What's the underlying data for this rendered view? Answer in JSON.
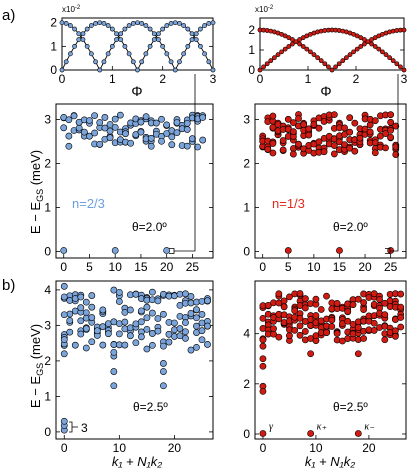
{
  "panel_labels": [
    "a)",
    "b)"
  ],
  "y_label_common": "E − E",
  "y_label_common_sub": "GS",
  "y_label_unit": "(meV)",
  "colors": {
    "blue_fill": "#7BA4DA",
    "red_fill": "#D11B12",
    "blue_text": "#6E9FDD",
    "red_text": "#E02A1E",
    "axis": "#000000"
  },
  "chart_data": [
    {
      "id": "a-left-inset",
      "type": "line",
      "xlabel": "Φ",
      "x_ticks": [
        "0",
        "1",
        "2",
        "3"
      ],
      "y_ticks": [
        "0",
        "1",
        "2"
      ],
      "y_multiplier": "x10",
      "y_multiplier_exp": "-2",
      "xlim": [
        0,
        3
      ],
      "ylim": [
        0,
        2.2
      ],
      "series_shape": "abs_sin_period_1.5",
      "amplitude": 2.0
    },
    {
      "id": "a-right-inset",
      "type": "line",
      "xlabel": "Φ",
      "x_ticks": [
        "0",
        "1",
        "2",
        "3"
      ],
      "y_ticks": [
        "0",
        "1",
        "2"
      ],
      "y_multiplier": "x10",
      "y_multiplier_exp": "-2",
      "xlim": [
        0,
        3
      ],
      "ylim": [
        0,
        2.6
      ],
      "series_shape": "abs_sin_period_3",
      "amplitude": 2.0
    },
    {
      "id": "a-left-spectrum",
      "type": "scatter",
      "x_ticks": [
        "0",
        "5",
        "10",
        "15",
        "20",
        "25"
      ],
      "y_ticks": [
        "0",
        "1",
        "2",
        "3"
      ],
      "xlim": [
        -1.5,
        29
      ],
      "ylim": [
        -0.15,
        3.35
      ],
      "ground_states_x": [
        0,
        10,
        20
      ],
      "bracket_x": 20,
      "annotation_label": "n=2/3",
      "angle_label": "θ=2.0º"
    },
    {
      "id": "a-right-spectrum",
      "type": "scatter",
      "x_ticks": [
        "0",
        "5",
        "10",
        "15",
        "20",
        "25"
      ],
      "y_ticks": [
        "0",
        "1",
        "2",
        "3"
      ],
      "xlim": [
        -1.5,
        28
      ],
      "ylim": [
        -0.15,
        3.35
      ],
      "ground_states_x": [
        5,
        15,
        25
      ],
      "bracket_x": 25,
      "annotation_label": "n=1/3",
      "angle_label": "θ=2.0º"
    },
    {
      "id": "b-left-spectrum",
      "type": "scatter",
      "x_ticks": [
        "0",
        "10",
        "20"
      ],
      "y_ticks": [
        "0",
        "1",
        "2",
        "3",
        "4"
      ],
      "xlim": [
        -1.5,
        27
      ],
      "ylim": [
        -0.2,
        4.25
      ],
      "xlabel": "k₁ + N₁k₂",
      "bracket_label": "3",
      "angle_label": "θ=2.5º"
    },
    {
      "id": "b-right-spectrum",
      "type": "scatter",
      "x_ticks": [
        "0",
        "10",
        "20"
      ],
      "y_ticks": [
        "0",
        "2",
        "4"
      ],
      "xlim": [
        -1.5,
        27
      ],
      "ylim": [
        -0.2,
        6.1
      ],
      "xlabel": "k₁ + N₁k₂",
      "angle_label": "θ=2.5º",
      "legend": [
        "γ",
        "κ₊",
        "κ₋"
      ],
      "legend_x": [
        0,
        9,
        18
      ]
    }
  ]
}
